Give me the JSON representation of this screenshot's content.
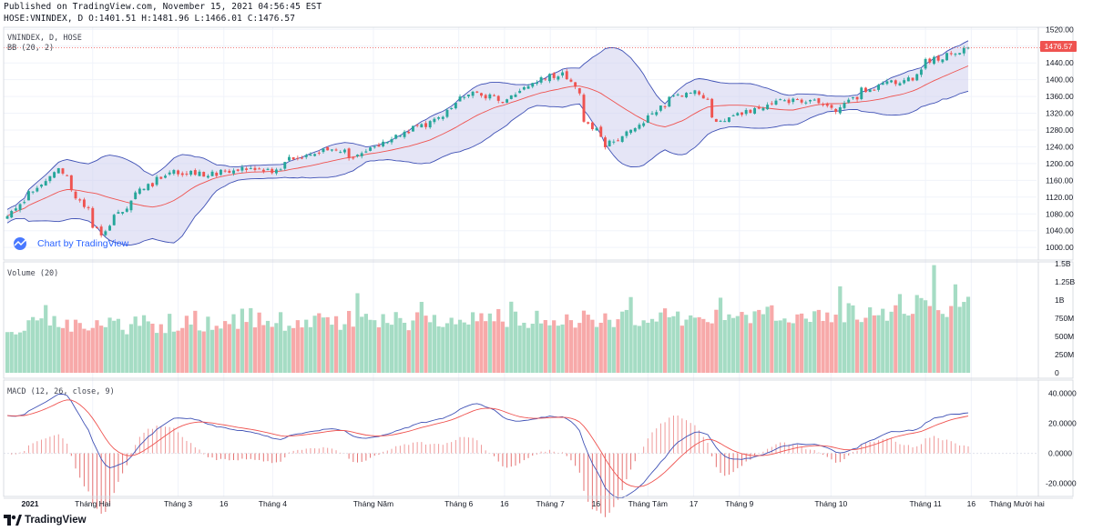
{
  "header": {
    "line1": "Published on TradingView.com, November 15, 2021 04:56:45 EST",
    "line2": "HOSE:VNINDEX, D O:1401.51 H:1481.96 L:1466.01 C:1476.57"
  },
  "panes": {
    "price_title": "VNINDEX, D, HOSE",
    "bb_title": "BB (20, 2)",
    "volume_title": "Volume (20)",
    "macd_title": "MACD (12, 26, close, 9)",
    "last_price_badge": "1476.57"
  },
  "watermark": "Chart by TradingView",
  "footer": {
    "brand": "TradingView"
  },
  "colors": {
    "up": "#26a69a",
    "down": "#ef5350",
    "bb_fill": "#cfcfef",
    "bb_band": "#3f51b5",
    "bb_basis": "#ef5350",
    "macd_line": "#3f51b5",
    "signal_line": "#ef5350",
    "vol_up": "#a5dcc4",
    "vol_down": "#f7a9a9",
    "price_line": "#ef5350"
  },
  "chart_data": [
    {
      "type": "candlestick",
      "title": "VNINDEX, D, HOSE",
      "indicator": "BB (20, 2)",
      "ylim": [
        970,
        1525
      ],
      "y_ticks": [
        "1520.00",
        "1480.00",
        "1440.00",
        "1400.00",
        "1360.00",
        "1320.00",
        "1280.00",
        "1240.00",
        "1200.00",
        "1160.00",
        "1120.00",
        "1080.00",
        "1040.00",
        "1000.00"
      ],
      "last_close": 1476.57,
      "anchors": [
        [
          "2021-01-04",
          1080
        ],
        [
          "2021-01-20",
          1190
        ],
        [
          "2021-01-28",
          1100
        ],
        [
          "2021-02-03",
          1030
        ],
        [
          "2021-02-15",
          1130
        ],
        [
          "2021-02-25",
          1180
        ],
        [
          "2021-03-10",
          1175
        ],
        [
          "2021-03-22",
          1190
        ],
        [
          "2021-03-31",
          1180
        ],
        [
          "2021-04-05",
          1210
        ],
        [
          "2021-04-20",
          1240
        ],
        [
          "2021-04-26",
          1215
        ],
        [
          "2021-05-10",
          1260
        ],
        [
          "2021-05-25",
          1310
        ],
        [
          "2021-06-03",
          1370
        ],
        [
          "2021-06-15",
          1350
        ],
        [
          "2021-06-25",
          1400
        ],
        [
          "2021-07-05",
          1415
        ],
        [
          "2021-07-08",
          1390
        ],
        [
          "2021-07-12",
          1305
        ],
        [
          "2021-07-19",
          1245
        ],
        [
          "2021-07-26",
          1280
        ],
        [
          "2021-08-02",
          1315
        ],
        [
          "2021-08-10",
          1365
        ],
        [
          "2021-08-18",
          1370
        ],
        [
          "2021-08-24",
          1300
        ],
        [
          "2021-08-31",
          1320
        ],
        [
          "2021-09-15",
          1350
        ],
        [
          "2021-09-27",
          1345
        ],
        [
          "2021-10-01",
          1320
        ],
        [
          "2021-10-11",
          1375
        ],
        [
          "2021-10-20",
          1395
        ],
        [
          "2021-10-27",
          1405
        ],
        [
          "2021-11-01",
          1445
        ],
        [
          "2021-11-08",
          1460
        ],
        [
          "2021-11-15",
          1476.57
        ]
      ]
    },
    {
      "type": "bar",
      "title": "Volume (20)",
      "ylim": [
        0,
        1500000000
      ],
      "y_ticks": [
        "1.5B",
        "1.25B",
        "1B",
        "750M",
        "500M",
        "250M",
        "0"
      ]
    },
    {
      "type": "line",
      "title": "MACD (12, 26, close, 9)",
      "ylim": [
        -25,
        45
      ],
      "y_ticks": [
        "40.0000",
        "20.0000",
        "0.0000",
        "-20.0000"
      ],
      "series": [
        {
          "values": []
        },
        {
          "values": []
        }
      ]
    }
  ],
  "x_axis": {
    "start": "2021-01-04",
    "labels": [
      {
        "text": "2021",
        "date": "2021-01-01",
        "bold": true
      },
      {
        "text": "Tháng Hai",
        "date": "2021-02-01"
      },
      {
        "text": "Tháng 3",
        "date": "2021-03-01"
      },
      {
        "text": "16",
        "date": "2021-03-16"
      },
      {
        "text": "Tháng 4",
        "date": "2021-04-01"
      },
      {
        "text": "Tháng Năm",
        "date": "2021-05-04"
      },
      {
        "text": "Tháng 6",
        "date": "2021-06-01"
      },
      {
        "text": "16",
        "date": "2021-06-16"
      },
      {
        "text": "Tháng 7",
        "date": "2021-07-01"
      },
      {
        "text": "16",
        "date": "2021-07-16"
      },
      {
        "text": "Tháng Tám",
        "date": "2021-08-02"
      },
      {
        "text": "17",
        "date": "2021-08-17"
      },
      {
        "text": "Tháng 9",
        "date": "2021-09-01"
      },
      {
        "text": "Tháng 10",
        "date": "2021-10-01"
      },
      {
        "text": "Tháng 11",
        "date": "2021-11-01"
      },
      {
        "text": "16",
        "date": "2021-11-16"
      },
      {
        "text": "Tháng Mười hai",
        "date": "2021-12-01"
      }
    ]
  }
}
